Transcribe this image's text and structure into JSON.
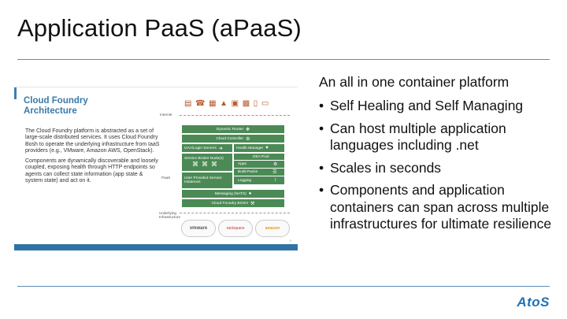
{
  "title": "Application PaaS (aPaaS)",
  "slide": {
    "title": "Cloud Foundry Architecture",
    "paragraph1": "The Cloud Foundry platform is abstracted as a set of large-scale distributed services. It uses Cloud Foundry Bosh to operate the underlying infrastructure from IaaS providers (e.g., VMware, Amazon AWS, OpenStack).",
    "paragraph2": "Components are dynamically discoverable and loosely coupled, exposing health through HTTP endpoints so agents can collect state information (app state & system state) and act on it.",
    "layer_internet": "Internet",
    "layer_paas": "PaaS",
    "layer_infra": "Underlying Infrastructure",
    "components": {
      "dynamic_router": "Dynamic Router",
      "cloud_controller": "Cloud Controller",
      "uaa": "UAA/Login Servers",
      "health_manager": "Health Manager",
      "service_broker": "Service Broker Node(s)",
      "dea_pool": "DEA Pool",
      "apps": "Apps",
      "build_packs": "Build Packs",
      "logging": "Logging",
      "user_services": "User Provided Service Instances",
      "messaging": "Messaging (NATS)",
      "bosh": "Cloud Foundry BOSH"
    },
    "clouds": [
      "vmware",
      "rackspace",
      "amazon"
    ],
    "page_number": "9"
  },
  "content": {
    "heading": "An all in one container platform",
    "bullets": [
      "Self Healing and Self Managing",
      "Can host multiple application languages including .net",
      "Scales in seconds",
      "Components and application containers can span across multiple infrastructures for ultimate resilience"
    ]
  },
  "logo": "AtoS",
  "colors": {
    "rule": "#5b8db8",
    "slide_accent": "#3a79a9",
    "component_green": "#4c8a55",
    "logo_blue": "#1f73b7"
  }
}
